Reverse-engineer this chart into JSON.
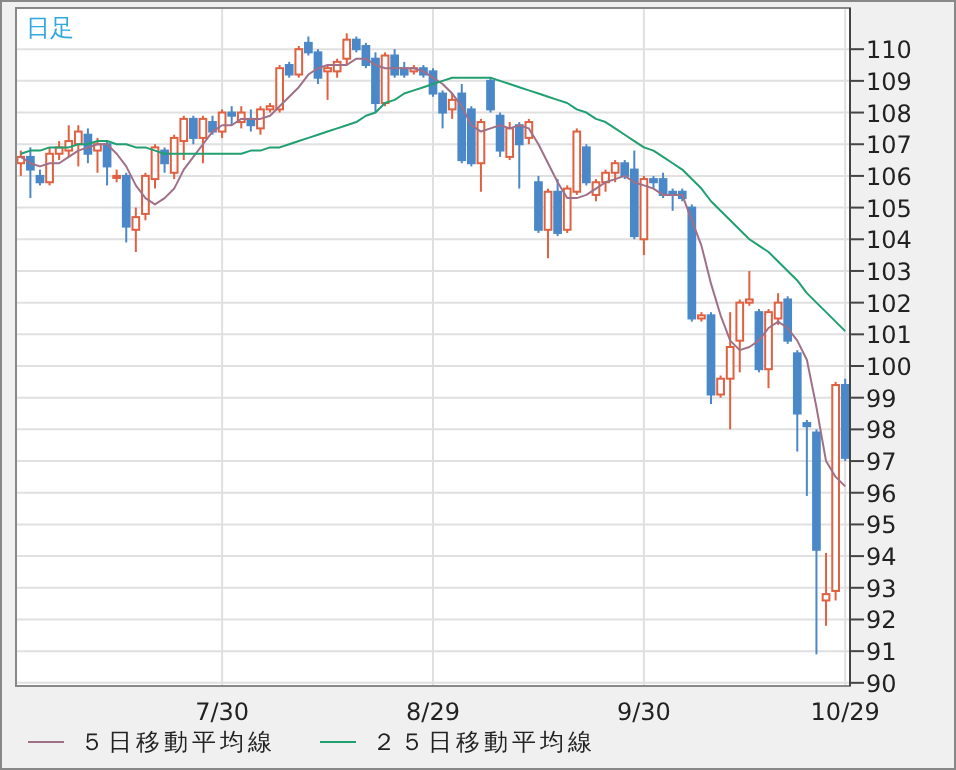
{
  "chart_data": {
    "type": "candlestick",
    "title": "日足",
    "categories": [
      null,
      null,
      null,
      null,
      null,
      null,
      null,
      null,
      null,
      null,
      null,
      null,
      null,
      null,
      null,
      null,
      null,
      null,
      null,
      null,
      null,
      "7/30",
      null,
      null,
      null,
      null,
      null,
      null,
      null,
      null,
      null,
      null,
      null,
      null,
      null,
      null,
      null,
      null,
      null,
      null,
      null,
      null,
      null,
      "8/29",
      null,
      null,
      null,
      null,
      null,
      null,
      null,
      null,
      null,
      null,
      null,
      null,
      null,
      null,
      null,
      null,
      null,
      null,
      null,
      null,
      null,
      "9/30",
      null,
      null,
      null,
      null,
      null,
      null,
      null,
      null,
      null,
      null,
      null,
      null,
      null,
      null,
      null,
      null,
      null,
      null,
      null,
      null,
      "10/29"
    ],
    "ohlc": [
      [
        106.4,
        106.8,
        106.0,
        106.6
      ],
      [
        106.6,
        106.9,
        105.3,
        106.2
      ],
      [
        106.0,
        106.2,
        105.7,
        105.8
      ],
      [
        105.8,
        106.9,
        105.7,
        106.7
      ],
      [
        106.7,
        107.1,
        106.5,
        106.9
      ],
      [
        106.8,
        107.6,
        106.6,
        107.1
      ],
      [
        107.0,
        107.6,
        106.3,
        107.4
      ],
      [
        107.3,
        107.5,
        106.4,
        106.7
      ],
      [
        106.8,
        107.2,
        106.1,
        107.0
      ],
      [
        107.0,
        107.1,
        105.7,
        106.3
      ],
      [
        106.0,
        106.2,
        105.8,
        106.0
      ],
      [
        106.0,
        106.1,
        103.9,
        104.4
      ],
      [
        104.3,
        105.0,
        103.6,
        104.7
      ],
      [
        104.8,
        106.1,
        104.6,
        106.0
      ],
      [
        105.9,
        107.0,
        105.6,
        106.9
      ],
      [
        106.8,
        106.9,
        106.1,
        106.4
      ],
      [
        106.1,
        107.3,
        105.9,
        107.2
      ],
      [
        107.1,
        107.9,
        106.5,
        107.8
      ],
      [
        107.8,
        107.9,
        107.0,
        107.2
      ],
      [
        107.2,
        107.9,
        106.4,
        107.8
      ],
      [
        107.7,
        107.9,
        107.3,
        107.4
      ],
      [
        107.4,
        108.1,
        107.2,
        108.0
      ],
      [
        108.0,
        108.2,
        107.6,
        107.9
      ],
      [
        107.7,
        108.2,
        107.5,
        108.0
      ],
      [
        107.8,
        108.1,
        107.4,
        107.6
      ],
      [
        107.5,
        108.2,
        107.3,
        108.1
      ],
      [
        108.1,
        108.3,
        108.0,
        108.2
      ],
      [
        108.1,
        109.5,
        108.0,
        109.4
      ],
      [
        109.5,
        109.6,
        109.1,
        109.2
      ],
      [
        109.2,
        110.1,
        109.1,
        110.0
      ],
      [
        110.2,
        110.4,
        109.8,
        109.9
      ],
      [
        109.9,
        110.0,
        108.9,
        109.1
      ],
      [
        109.3,
        109.5,
        108.4,
        109.4
      ],
      [
        109.3,
        109.7,
        109.1,
        109.6
      ],
      [
        109.7,
        110.5,
        109.5,
        110.3
      ],
      [
        110.3,
        110.4,
        109.9,
        110.0
      ],
      [
        110.1,
        110.2,
        109.4,
        109.5
      ],
      [
        109.7,
        109.9,
        108.0,
        108.3
      ],
      [
        108.3,
        109.9,
        108.2,
        109.8
      ],
      [
        109.8,
        110.0,
        109.1,
        109.2
      ],
      [
        109.4,
        109.6,
        109.1,
        109.2
      ],
      [
        109.3,
        109.5,
        109.2,
        109.4
      ],
      [
        109.4,
        109.5,
        109.1,
        109.2
      ],
      [
        109.3,
        109.4,
        108.5,
        108.6
      ],
      [
        108.6,
        108.7,
        107.5,
        108.0
      ],
      [
        108.1,
        108.6,
        107.8,
        108.4
      ],
      [
        108.6,
        108.9,
        106.4,
        106.5
      ],
      [
        108.1,
        108.2,
        106.3,
        106.4
      ],
      [
        106.4,
        107.8,
        105.5,
        107.7
      ],
      [
        109.0,
        109.1,
        108.0,
        108.1
      ],
      [
        107.9,
        108.0,
        106.6,
        106.8
      ],
      [
        106.6,
        107.7,
        106.5,
        107.5
      ],
      [
        107.6,
        107.7,
        105.6,
        107.0
      ],
      [
        107.2,
        107.8,
        107.0,
        107.7
      ],
      [
        105.8,
        106.0,
        104.2,
        104.3
      ],
      [
        104.3,
        105.6,
        103.4,
        105.5
      ],
      [
        105.5,
        105.9,
        104.1,
        104.2
      ],
      [
        104.3,
        105.7,
        104.2,
        105.6
      ],
      [
        105.5,
        107.5,
        105.4,
        107.4
      ],
      [
        106.9,
        107.0,
        105.7,
        105.8
      ],
      [
        105.4,
        105.9,
        105.2,
        105.8
      ],
      [
        105.8,
        106.2,
        105.5,
        106.1
      ],
      [
        106.1,
        106.5,
        105.8,
        106.4
      ],
      [
        106.4,
        106.5,
        105.9,
        106.0
      ],
      [
        106.2,
        106.8,
        104.0,
        104.1
      ],
      [
        104.0,
        106.0,
        103.5,
        105.9
      ],
      [
        105.9,
        106.0,
        105.6,
        105.8
      ],
      [
        105.9,
        106.1,
        105.3,
        105.4
      ],
      [
        105.5,
        105.6,
        104.9,
        105.4
      ],
      [
        105.5,
        105.6,
        105.2,
        105.3
      ],
      [
        105.0,
        105.1,
        101.4,
        101.5
      ],
      [
        101.5,
        101.7,
        101.4,
        101.6
      ],
      [
        101.6,
        101.7,
        98.8,
        99.1
      ],
      [
        99.1,
        99.7,
        99.0,
        99.6
      ],
      [
        99.6,
        101.7,
        98.0,
        100.6
      ],
      [
        100.8,
        102.1,
        99.8,
        102.0
      ],
      [
        102.0,
        103.0,
        101.9,
        102.1
      ],
      [
        101.7,
        101.8,
        99.8,
        99.9
      ],
      [
        99.9,
        101.8,
        99.3,
        101.7
      ],
      [
        101.5,
        102.3,
        101.3,
        102.0
      ],
      [
        102.1,
        102.2,
        100.7,
        100.8
      ],
      [
        100.4,
        100.5,
        97.3,
        98.5
      ],
      [
        98.2,
        98.3,
        95.9,
        98.1
      ],
      [
        97.9,
        98.0,
        90.9,
        94.2
      ],
      [
        92.6,
        94.1,
        91.8,
        92.8
      ],
      [
        92.9,
        99.5,
        92.6,
        99.4
      ],
      [
        99.4,
        99.6,
        97.0,
        97.1
      ]
    ],
    "series": [
      {
        "type": "line",
        "name": "５日移動平均線",
        "color": "#a07088",
        "values": [
          106.6,
          106.4,
          106.3,
          106.4,
          106.4,
          106.6,
          106.8,
          106.9,
          107.0,
          107.0,
          106.7,
          106.3,
          105.7,
          105.3,
          105.1,
          105.3,
          105.6,
          106.2,
          106.6,
          107.0,
          107.4,
          107.6,
          107.6,
          107.8,
          107.8,
          107.8,
          107.9,
          108.2,
          108.5,
          108.8,
          109.2,
          109.4,
          109.5,
          109.5,
          109.5,
          109.7,
          109.7,
          109.5,
          109.4,
          109.4,
          109.4,
          109.4,
          109.3,
          109.1,
          108.9,
          108.6,
          108.2,
          107.6,
          107.4,
          107.5,
          107.6,
          107.5,
          107.6,
          107.5,
          107.0,
          106.4,
          105.8,
          105.3,
          105.3,
          105.4,
          105.6,
          105.8,
          105.9,
          106.0,
          105.8,
          105.7,
          105.6,
          105.4,
          105.4,
          105.4,
          104.6,
          103.8,
          102.6,
          101.6,
          100.8,
          100.5,
          100.6,
          100.8,
          101.2,
          101.4,
          101.2,
          100.8,
          100.2,
          98.7,
          97.0,
          96.5,
          96.2
        ]
      },
      {
        "type": "line",
        "name": "２５日移動平均線",
        "color": "#20a070",
        "values": [
          106.7,
          106.8,
          106.8,
          106.9,
          106.9,
          106.9,
          107.0,
          107.0,
          107.1,
          107.1,
          107.0,
          107.0,
          106.9,
          106.9,
          106.8,
          106.7,
          106.7,
          106.7,
          106.7,
          106.7,
          106.7,
          106.7,
          106.7,
          106.7,
          106.8,
          106.8,
          106.9,
          106.9,
          107.0,
          107.1,
          107.2,
          107.3,
          107.4,
          107.5,
          107.6,
          107.7,
          107.9,
          108.0,
          108.3,
          108.4,
          108.6,
          108.7,
          108.8,
          108.9,
          109.0,
          109.1,
          109.1,
          109.1,
          109.1,
          109.1,
          109.0,
          108.9,
          108.8,
          108.7,
          108.6,
          108.5,
          108.4,
          108.3,
          108.1,
          108.0,
          107.8,
          107.7,
          107.5,
          107.3,
          107.1,
          106.9,
          106.8,
          106.6,
          106.4,
          106.2,
          105.9,
          105.6,
          105.2,
          104.9,
          104.6,
          104.3,
          104.0,
          103.8,
          103.6,
          103.3,
          103.0,
          102.7,
          102.3,
          102.0,
          101.7,
          101.4,
          101.1
        ]
      }
    ],
    "ylim": [
      89.9,
      111.3
    ],
    "yticks": [
      90,
      91,
      92,
      93,
      94,
      95,
      96,
      97,
      98,
      99,
      100,
      101,
      102,
      103,
      104,
      105,
      106,
      107,
      108,
      109,
      110
    ],
    "grid": true,
    "legend": "bottom"
  }
}
